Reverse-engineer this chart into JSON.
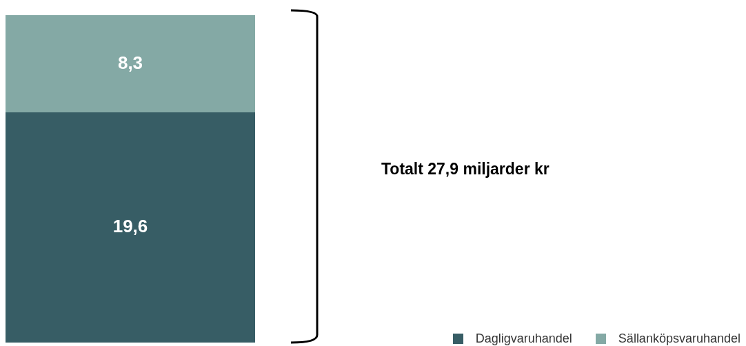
{
  "chart_data": {
    "type": "bar",
    "stacked": true,
    "categories": [
      null
    ],
    "series": [
      {
        "name": "Dagligvaruhandel",
        "color": "#375d65",
        "values": [
          19.6
        ],
        "value_labels": [
          "19,6"
        ]
      },
      {
        "name": "Sällanköpsvaruhandel",
        "color": "#84a9a5",
        "values": [
          8.3
        ],
        "value_labels": [
          "8,3"
        ]
      }
    ],
    "annotations": [
      "Totalt 27,9 miljarder kr"
    ],
    "legend": "bottom right"
  }
}
